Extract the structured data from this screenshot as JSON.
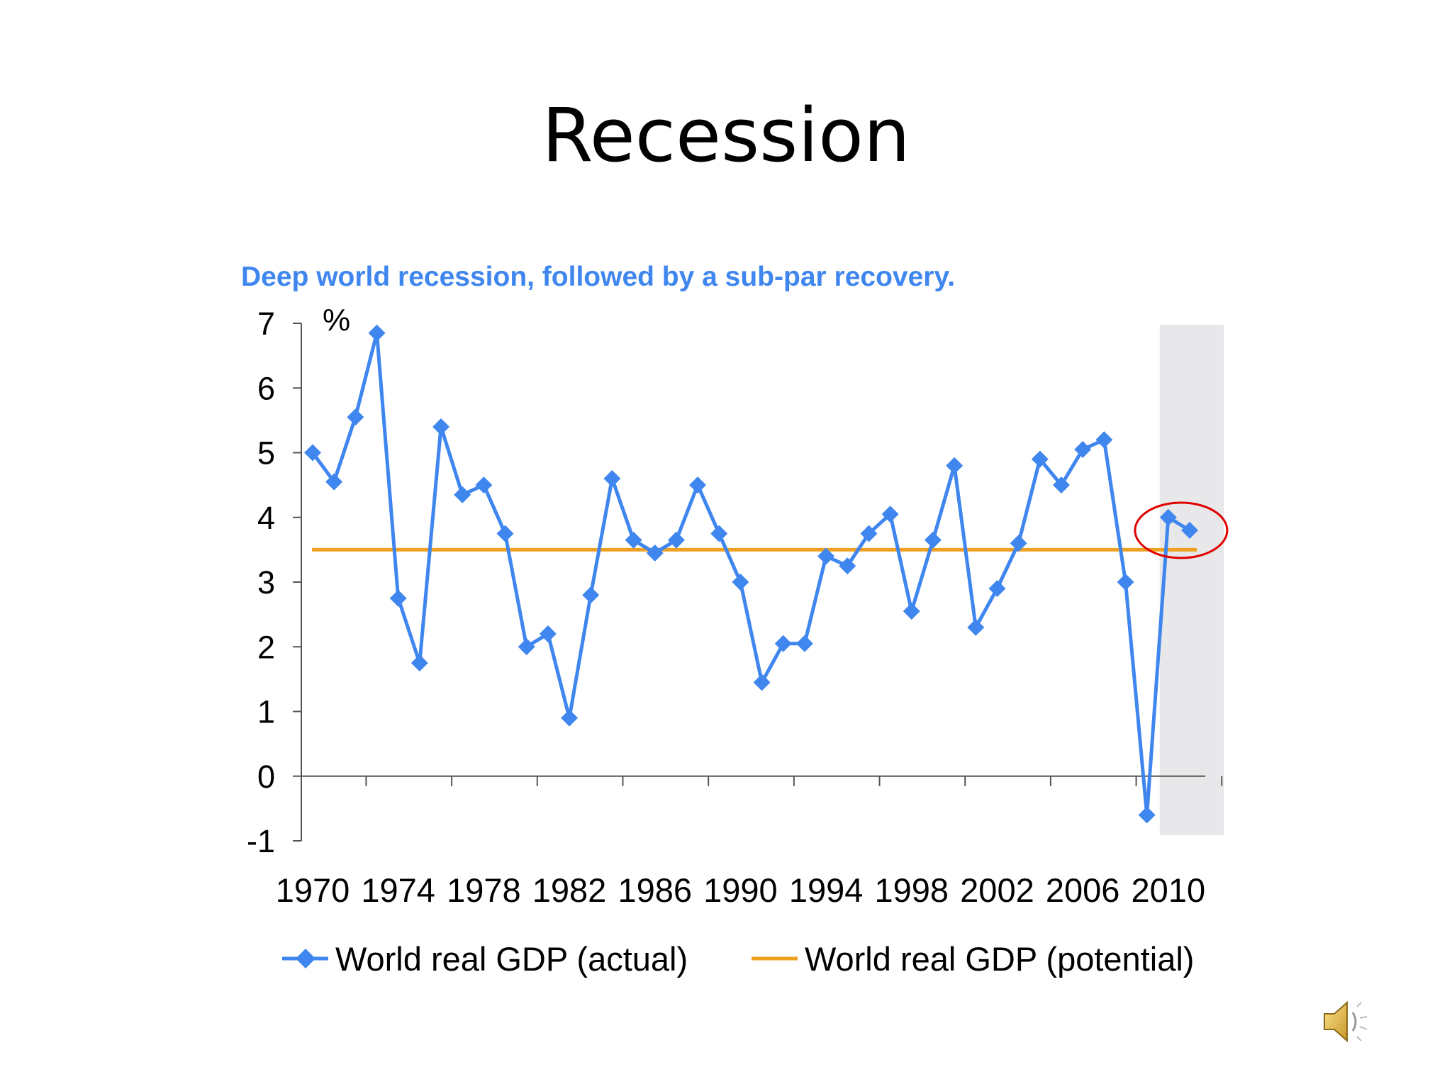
{
  "slide": {
    "title": "Recession"
  },
  "chart_data": {
    "type": "line",
    "title": "Deep world recession, followed by a sub-par recovery.",
    "ylabel": "%",
    "xlabel": "",
    "ylim": [
      -1,
      7
    ],
    "yticks": [
      7,
      6,
      5,
      4,
      3,
      2,
      1,
      0,
      -1
    ],
    "xlim": [
      1970,
      2011
    ],
    "xticks": [
      1970,
      1974,
      1978,
      1982,
      1986,
      1990,
      1994,
      1998,
      2002,
      2006,
      2010
    ],
    "grid": false,
    "legend": "bottom",
    "forecast_shading": {
      "from": 2009.6,
      "to": 2012.6,
      "color": "#e8e8ea"
    },
    "highlight_circle": {
      "years": [
        2010,
        2011
      ],
      "color": "#e00000"
    },
    "series": [
      {
        "name": "World real GDP (actual)",
        "color": "#3f86ef",
        "marker": "diamond",
        "x": [
          1970,
          1971,
          1972,
          1973,
          1974,
          1975,
          1976,
          1977,
          1978,
          1979,
          1980,
          1981,
          1982,
          1983,
          1984,
          1985,
          1986,
          1987,
          1988,
          1989,
          1990,
          1991,
          1992,
          1993,
          1994,
          1995,
          1996,
          1997,
          1998,
          1999,
          2000,
          2001,
          2002,
          2003,
          2004,
          2005,
          2006,
          2007,
          2008,
          2009,
          2010,
          2011
        ],
        "values": [
          5.0,
          4.55,
          5.55,
          6.85,
          2.75,
          1.75,
          5.4,
          4.35,
          4.5,
          3.75,
          2.0,
          2.2,
          0.9,
          2.8,
          4.6,
          3.65,
          3.45,
          3.65,
          4.5,
          3.75,
          3.0,
          1.45,
          2.05,
          2.05,
          3.4,
          3.25,
          3.75,
          4.05,
          2.55,
          3.65,
          4.8,
          2.3,
          2.9,
          3.6,
          4.9,
          4.5,
          5.05,
          5.2,
          3.0,
          -0.6,
          4.0,
          3.8
        ]
      },
      {
        "name": "World real GDP (potential)",
        "color": "#f0a020",
        "marker": "none",
        "x": [
          1970,
          2012
        ],
        "values": [
          3.5,
          3.5
        ]
      }
    ]
  }
}
